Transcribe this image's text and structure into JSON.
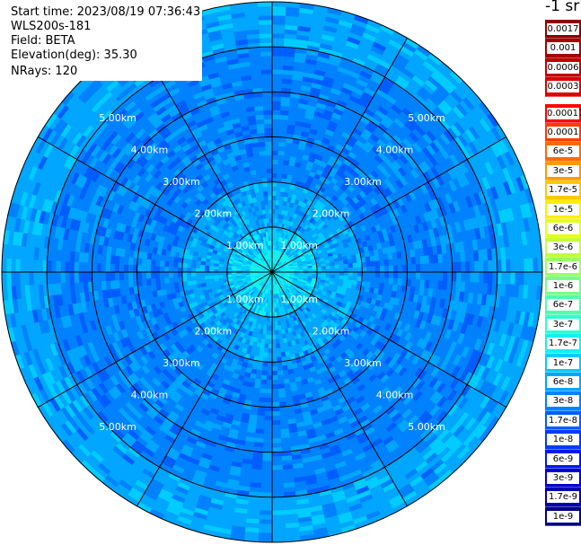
{
  "info": {
    "start_time": "Start time: 2023/08/19 07:36:43",
    "instrument": "WLS200s-181",
    "field": "Field: BETA",
    "elevation": "Elevation(deg): 35.30",
    "nrays": "NRays: 120"
  },
  "legend": {
    "unit": "-1 sr",
    "upper": [
      {
        "label": "0.0017",
        "color": "#8b0000"
      },
      {
        "label": "0.001",
        "color": "#a50000"
      },
      {
        "label": "0.0006",
        "color": "#c00000"
      },
      {
        "label": "0.0003",
        "color": "#dd0000"
      }
    ],
    "lower": [
      {
        "label": "0.00017",
        "color": "#ff0000"
      },
      {
        "label": "0.0001",
        "color": "#ff3a00"
      },
      {
        "label": "6e-5",
        "color": "#ff6a00"
      },
      {
        "label": "3e-5",
        "color": "#ff9a00"
      },
      {
        "label": "1.7e-5",
        "color": "#ffc800"
      },
      {
        "label": "1e-5",
        "color": "#ffee00"
      },
      {
        "label": "6e-6",
        "color": "#e6ff1a"
      },
      {
        "label": "3e-6",
        "color": "#c2ff3c"
      },
      {
        "label": "1.7e-6",
        "color": "#9cff62"
      },
      {
        "label": "1e-6",
        "color": "#76ff88"
      },
      {
        "label": "6e-7",
        "color": "#50ffae"
      },
      {
        "label": "3e-7",
        "color": "#2effd2"
      },
      {
        "label": "1.7e-7",
        "color": "#14f0f0"
      },
      {
        "label": "1e-7",
        "color": "#00ccff"
      },
      {
        "label": "6e-8",
        "color": "#00a6ff"
      },
      {
        "label": "3e-8",
        "color": "#0082ff"
      },
      {
        "label": "1.7e-8",
        "color": "#005eff"
      },
      {
        "label": "1e-8",
        "color": "#003aff"
      },
      {
        "label": "6e-9",
        "color": "#0018ee"
      },
      {
        "label": "3e-9",
        "color": "#0000cc"
      },
      {
        "label": "1.7e-9",
        "color": "#0000a8"
      },
      {
        "label": "1e-9",
        "color": "#000080"
      }
    ]
  },
  "chart_data": {
    "type": "heatmap",
    "projection": "polar-ppi",
    "field": "BETA",
    "range_rings_km": [
      1,
      2,
      3,
      4,
      5,
      6
    ],
    "range_ring_labels": [
      "1.00km",
      "2.00km",
      "3.00km",
      "4.00km",
      "5.00km"
    ],
    "max_range_km": 6,
    "radial_spokes_deg": [
      0,
      30,
      60,
      90,
      120,
      150,
      180,
      210,
      240,
      270,
      300,
      330
    ],
    "nrays": 120,
    "value_bands": [
      {
        "range_km": [
          0,
          0.5
        ],
        "value": "1.7e-7"
      },
      {
        "range_km": [
          0.5,
          1.0
        ],
        "value": "1e-7"
      },
      {
        "range_km": [
          1.0,
          2.0
        ],
        "value": "6e-8"
      },
      {
        "range_km": [
          2.0,
          4.0
        ],
        "value": "3e-8"
      },
      {
        "range_km": [
          4.0,
          5.0
        ],
        "value": "3e-8"
      },
      {
        "range_km": [
          5.0,
          6.0
        ],
        "value": "6e-8"
      }
    ]
  }
}
